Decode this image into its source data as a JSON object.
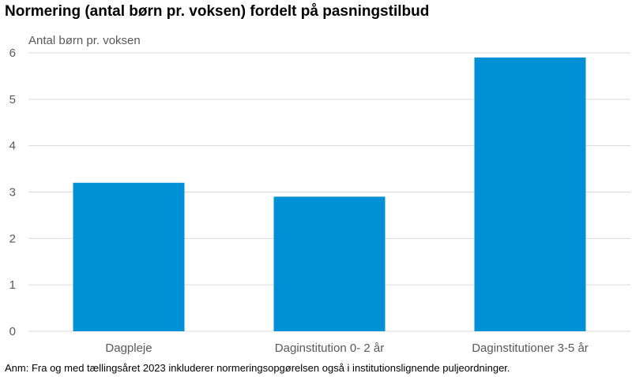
{
  "chart_data": {
    "type": "bar",
    "title": "Normering (antal børn pr. voksen) fordelt på pasningstilbud",
    "ylabel": "Antal børn pr. voksen",
    "xlabel": "",
    "categories": [
      "Dagpleje",
      "Daginstitution 0- 2 år",
      "Daginstitutioner 3-5 år"
    ],
    "values": [
      3.2,
      2.9,
      5.9
    ],
    "ylim": [
      0,
      6
    ],
    "yticks": [
      "0",
      "1",
      "2",
      "3",
      "4",
      "5",
      "6"
    ],
    "grid": true,
    "legend": "none",
    "bar_color": "#0090D6",
    "grid_color": "#D9D9D9",
    "note": "Anm: Fra og med tællingsåret 2023 inkluderer normeringsopgørelsen også i institutionslignende puljeordninger."
  }
}
